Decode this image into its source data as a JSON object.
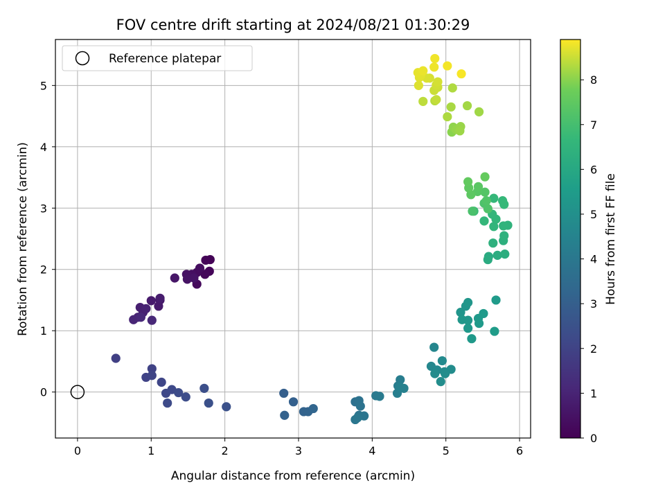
{
  "chart_data": {
    "type": "scatter",
    "title": "FOV centre drift starting at 2024/08/21 01:30:29",
    "xlabel": "Angular distance from reference (arcmin)",
    "ylabel": "Rotation from reference (arcmin)",
    "xlim": [
      -0.3,
      6.15
    ],
    "ylim": [
      -0.75,
      5.75
    ],
    "xticks": [
      0,
      1,
      2,
      3,
      4,
      5,
      6
    ],
    "yticks": [
      0,
      1,
      2,
      3,
      4,
      5
    ],
    "grid": true,
    "legend": {
      "position": "upper-left",
      "entries": [
        "Reference platepar"
      ]
    },
    "reference_point": {
      "x": 0,
      "y": 0,
      "marker": "open-circle",
      "color": "#000000"
    },
    "colorbar": {
      "label": "Hours from first FF file",
      "colormap": "viridis",
      "range": [
        0,
        8.9
      ],
      "ticks": [
        0,
        1,
        2,
        3,
        4,
        5,
        6,
        7,
        8
      ]
    },
    "points": [
      {
        "x": 1.8,
        "y": 2.16,
        "c": 0.05
      },
      {
        "x": 1.74,
        "y": 2.15,
        "c": 0.1
      },
      {
        "x": 1.79,
        "y": 1.97,
        "c": 0.15
      },
      {
        "x": 1.73,
        "y": 1.92,
        "c": 0.2
      },
      {
        "x": 1.62,
        "y": 1.76,
        "c": 0.25
      },
      {
        "x": 1.62,
        "y": 1.95,
        "c": 0.3
      },
      {
        "x": 1.66,
        "y": 2.02,
        "c": 0.35
      },
      {
        "x": 1.55,
        "y": 1.92,
        "c": 0.4
      },
      {
        "x": 1.48,
        "y": 1.92,
        "c": 0.45
      },
      {
        "x": 1.49,
        "y": 1.84,
        "c": 0.5
      },
      {
        "x": 1.58,
        "y": 1.86,
        "c": 0.55
      },
      {
        "x": 1.32,
        "y": 1.86,
        "c": 0.6
      },
      {
        "x": 1.12,
        "y": 1.5,
        "c": 0.65
      },
      {
        "x": 1.1,
        "y": 1.4,
        "c": 0.7
      },
      {
        "x": 1.0,
        "y": 1.49,
        "c": 0.75
      },
      {
        "x": 1.12,
        "y": 1.53,
        "c": 0.8
      },
      {
        "x": 0.85,
        "y": 1.38,
        "c": 0.85
      },
      {
        "x": 0.89,
        "y": 1.3,
        "c": 0.9
      },
      {
        "x": 0.93,
        "y": 1.36,
        "c": 0.95
      },
      {
        "x": 0.82,
        "y": 1.22,
        "c": 1.0
      },
      {
        "x": 0.76,
        "y": 1.18,
        "c": 1.05
      },
      {
        "x": 1.01,
        "y": 1.17,
        "c": 1.1
      },
      {
        "x": 0.86,
        "y": 1.22,
        "c": 1.15
      },
      {
        "x": 0.52,
        "y": 0.55,
        "c": 1.9
      },
      {
        "x": 1.01,
        "y": 0.38,
        "c": 1.95
      },
      {
        "x": 0.93,
        "y": 0.24,
        "c": 2.0
      },
      {
        "x": 1.01,
        "y": 0.27,
        "c": 2.05
      },
      {
        "x": 1.14,
        "y": 0.16,
        "c": 2.1
      },
      {
        "x": 1.2,
        "y": -0.02,
        "c": 2.15
      },
      {
        "x": 1.28,
        "y": 0.04,
        "c": 2.2
      },
      {
        "x": 1.22,
        "y": -0.18,
        "c": 2.25
      },
      {
        "x": 1.37,
        "y": -0.01,
        "c": 2.3
      },
      {
        "x": 1.47,
        "y": -0.08,
        "c": 2.35
      },
      {
        "x": 1.72,
        "y": 0.06,
        "c": 2.4
      },
      {
        "x": 1.78,
        "y": -0.18,
        "c": 2.45
      },
      {
        "x": 2.02,
        "y": -0.24,
        "c": 2.5
      },
      {
        "x": 2.8,
        "y": -0.02,
        "c": 3.0
      },
      {
        "x": 2.93,
        "y": -0.16,
        "c": 3.05
      },
      {
        "x": 2.81,
        "y": -0.38,
        "c": 3.1
      },
      {
        "x": 3.07,
        "y": -0.32,
        "c": 3.15
      },
      {
        "x": 3.13,
        "y": -0.32,
        "c": 3.2
      },
      {
        "x": 3.2,
        "y": -0.27,
        "c": 3.25
      },
      {
        "x": 3.77,
        "y": -0.16,
        "c": 3.7
      },
      {
        "x": 3.82,
        "y": -0.14,
        "c": 3.75
      },
      {
        "x": 3.84,
        "y": -0.23,
        "c": 3.8
      },
      {
        "x": 3.82,
        "y": -0.38,
        "c": 3.85
      },
      {
        "x": 3.89,
        "y": -0.39,
        "c": 3.9
      },
      {
        "x": 3.77,
        "y": -0.45,
        "c": 3.95
      },
      {
        "x": 3.8,
        "y": -0.42,
        "c": 3.98
      },
      {
        "x": 4.05,
        "y": -0.06,
        "c": 4.05
      },
      {
        "x": 4.1,
        "y": -0.07,
        "c": 4.1
      },
      {
        "x": 4.35,
        "y": 0.1,
        "c": 4.2
      },
      {
        "x": 4.38,
        "y": 0.2,
        "c": 4.25
      },
      {
        "x": 4.34,
        "y": -0.02,
        "c": 4.3
      },
      {
        "x": 4.43,
        "y": 0.06,
        "c": 4.35
      },
      {
        "x": 4.38,
        "y": 0.08,
        "c": 4.4
      },
      {
        "x": 4.84,
        "y": 0.73,
        "c": 4.6
      },
      {
        "x": 4.8,
        "y": 0.42,
        "c": 4.65
      },
      {
        "x": 4.88,
        "y": 0.36,
        "c": 4.7
      },
      {
        "x": 4.95,
        "y": 0.51,
        "c": 4.75
      },
      {
        "x": 4.85,
        "y": 0.3,
        "c": 4.8
      },
      {
        "x": 4.98,
        "y": 0.33,
        "c": 4.82
      },
      {
        "x": 5.07,
        "y": 0.37,
        "c": 4.85
      },
      {
        "x": 4.93,
        "y": 0.17,
        "c": 4.88
      },
      {
        "x": 4.99,
        "y": 0.3,
        "c": 4.9
      },
      {
        "x": 5.2,
        "y": 1.3,
        "c": 5.2
      },
      {
        "x": 5.27,
        "y": 1.4,
        "c": 5.22
      },
      {
        "x": 5.3,
        "y": 1.46,
        "c": 5.25
      },
      {
        "x": 5.22,
        "y": 1.18,
        "c": 5.28
      },
      {
        "x": 5.3,
        "y": 1.17,
        "c": 5.3
      },
      {
        "x": 5.3,
        "y": 1.04,
        "c": 5.33
      },
      {
        "x": 5.35,
        "y": 0.87,
        "c": 5.35
      },
      {
        "x": 5.44,
        "y": 1.2,
        "c": 5.38
      },
      {
        "x": 5.45,
        "y": 1.12,
        "c": 5.4
      },
      {
        "x": 5.51,
        "y": 1.28,
        "c": 5.42
      },
      {
        "x": 5.68,
        "y": 1.5,
        "c": 5.45
      },
      {
        "x": 5.66,
        "y": 0.99,
        "c": 5.48
      },
      {
        "x": 5.58,
        "y": 2.21,
        "c": 6.1
      },
      {
        "x": 5.57,
        "y": 2.16,
        "c": 6.15
      },
      {
        "x": 5.7,
        "y": 2.23,
        "c": 6.2
      },
      {
        "x": 5.8,
        "y": 2.25,
        "c": 6.25
      },
      {
        "x": 5.78,
        "y": 2.47,
        "c": 6.3
      },
      {
        "x": 5.64,
        "y": 2.43,
        "c": 6.35
      },
      {
        "x": 5.79,
        "y": 2.55,
        "c": 6.4
      },
      {
        "x": 5.84,
        "y": 2.72,
        "c": 6.45
      },
      {
        "x": 5.78,
        "y": 2.71,
        "c": 6.5
      },
      {
        "x": 5.65,
        "y": 2.7,
        "c": 6.55
      },
      {
        "x": 5.68,
        "y": 2.82,
        "c": 6.58
      },
      {
        "x": 5.63,
        "y": 2.9,
        "c": 6.6
      },
      {
        "x": 5.52,
        "y": 2.79,
        "c": 6.62
      },
      {
        "x": 5.65,
        "y": 3.16,
        "c": 6.65
      },
      {
        "x": 5.77,
        "y": 3.12,
        "c": 6.68
      },
      {
        "x": 5.79,
        "y": 3.06,
        "c": 6.7
      },
      {
        "x": 5.38,
        "y": 2.95,
        "c": 6.8
      },
      {
        "x": 5.36,
        "y": 2.95,
        "c": 7.1
      },
      {
        "x": 5.52,
        "y": 3.08,
        "c": 7.15
      },
      {
        "x": 5.57,
        "y": 2.99,
        "c": 7.2
      },
      {
        "x": 5.55,
        "y": 3.12,
        "c": 7.25
      },
      {
        "x": 5.53,
        "y": 3.26,
        "c": 7.3
      },
      {
        "x": 5.43,
        "y": 3.27,
        "c": 7.35
      },
      {
        "x": 5.44,
        "y": 3.35,
        "c": 7.4
      },
      {
        "x": 5.34,
        "y": 3.22,
        "c": 7.45
      },
      {
        "x": 5.31,
        "y": 3.33,
        "c": 7.5
      },
      {
        "x": 5.3,
        "y": 3.43,
        "c": 7.55
      },
      {
        "x": 5.53,
        "y": 3.51,
        "c": 7.6
      },
      {
        "x": 5.08,
        "y": 4.24,
        "c": 8.0
      },
      {
        "x": 5.1,
        "y": 4.32,
        "c": 8.05
      },
      {
        "x": 5.14,
        "y": 4.28,
        "c": 8.1
      },
      {
        "x": 5.2,
        "y": 4.33,
        "c": 8.12
      },
      {
        "x": 5.19,
        "y": 4.26,
        "c": 8.15
      },
      {
        "x": 5.45,
        "y": 4.57,
        "c": 8.18
      },
      {
        "x": 5.29,
        "y": 4.67,
        "c": 8.2
      },
      {
        "x": 5.07,
        "y": 4.65,
        "c": 8.25
      },
      {
        "x": 5.02,
        "y": 4.49,
        "c": 8.28
      },
      {
        "x": 5.09,
        "y": 4.96,
        "c": 8.3
      },
      {
        "x": 4.85,
        "y": 4.75,
        "c": 8.35
      },
      {
        "x": 4.69,
        "y": 4.74,
        "c": 8.4
      },
      {
        "x": 4.87,
        "y": 4.77,
        "c": 8.45
      },
      {
        "x": 4.84,
        "y": 4.92,
        "c": 8.5
      },
      {
        "x": 4.89,
        "y": 4.97,
        "c": 8.52
      },
      {
        "x": 4.87,
        "y": 5.01,
        "c": 8.55
      },
      {
        "x": 4.89,
        "y": 5.06,
        "c": 8.58
      },
      {
        "x": 4.78,
        "y": 5.12,
        "c": 8.6
      },
      {
        "x": 4.74,
        "y": 5.12,
        "c": 8.62
      },
      {
        "x": 4.63,
        "y": 5.0,
        "c": 8.65
      },
      {
        "x": 4.64,
        "y": 5.13,
        "c": 8.68
      },
      {
        "x": 4.66,
        "y": 5.17,
        "c": 8.7
      },
      {
        "x": 4.62,
        "y": 5.21,
        "c": 8.72
      },
      {
        "x": 4.69,
        "y": 5.24,
        "c": 8.75
      },
      {
        "x": 4.84,
        "y": 5.3,
        "c": 8.78
      },
      {
        "x": 4.85,
        "y": 5.44,
        "c": 8.8
      },
      {
        "x": 5.02,
        "y": 5.32,
        "c": 8.82
      },
      {
        "x": 5.21,
        "y": 5.19,
        "c": 8.85
      }
    ]
  }
}
